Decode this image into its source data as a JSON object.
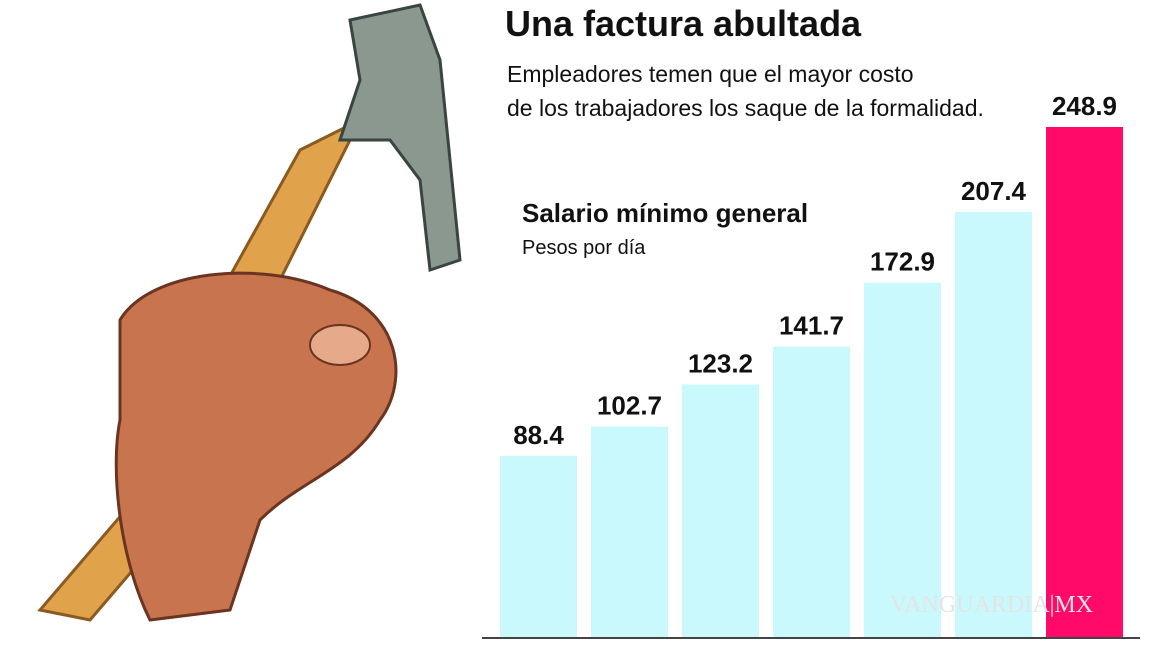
{
  "chart_data": {
    "type": "bar",
    "title": "Una factura abultada",
    "subtitle": [
      "Empleadores temen que el mayor costo",
      "de los trabajadores los saque de la formalidad."
    ],
    "chart_title": "Salario mínimo general",
    "y_label": "Pesos por día",
    "values": [
      88.4,
      102.7,
      123.2,
      141.7,
      172.9,
      207.4,
      248.9
    ],
    "colors": [
      "#c9f9fc",
      "#c9f9fc",
      "#c9f9fc",
      "#c9f9fc",
      "#c9f9fc",
      "#c9f9fc",
      "#ff0a68"
    ],
    "watermark": "VANGUARDIA|MX"
  }
}
